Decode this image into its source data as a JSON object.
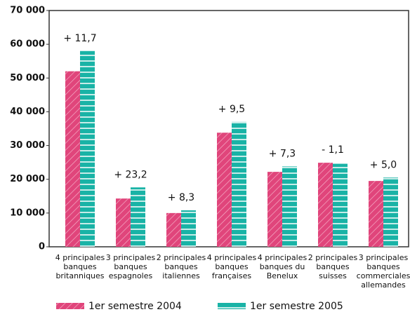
{
  "chart_data": {
    "type": "bar",
    "categories": [
      [
        "4 principales",
        "banques",
        "britanniques"
      ],
      [
        "3 principales",
        "banques",
        "espagnoles"
      ],
      [
        "2 principales",
        "banques",
        "italiennes"
      ],
      [
        "4 principales",
        "banques",
        "françaises"
      ],
      [
        "4 principales",
        "banques du",
        "Benelux"
      ],
      [
        "2 principales",
        "banques",
        "suisses"
      ],
      [
        "3 principales",
        "banques",
        "commerciales",
        "allemandes"
      ]
    ],
    "series": [
      {
        "name": "1er semestre 2004",
        "color": "#e0457b",
        "values": [
          52000,
          14300,
          10000,
          33800,
          22200,
          24900,
          19500
        ]
      },
      {
        "name": "1er semestre 2005",
        "color": "#19b3a6",
        "values": [
          58000,
          17600,
          10800,
          37000,
          23800,
          24600,
          20500
        ]
      }
    ],
    "annotations": [
      "+ 11,7",
      "+ 23,2",
      "+ 8,3",
      "+ 9,5",
      "+ 7,3",
      "- 1,1",
      "+ 5,0"
    ],
    "ylim": [
      0,
      70000
    ],
    "yticks": [
      {
        "value": 0,
        "label": "0"
      },
      {
        "value": 10000,
        "label": "10 000"
      },
      {
        "value": 20000,
        "label": "20 000"
      },
      {
        "value": 30000,
        "label": "30 000"
      },
      {
        "value": 40000,
        "label": "40 000"
      },
      {
        "value": 50000,
        "label": "50 000"
      },
      {
        "value": 60000,
        "label": "60 000"
      },
      {
        "value": 70000,
        "label": "70 000"
      }
    ],
    "grid": false
  }
}
